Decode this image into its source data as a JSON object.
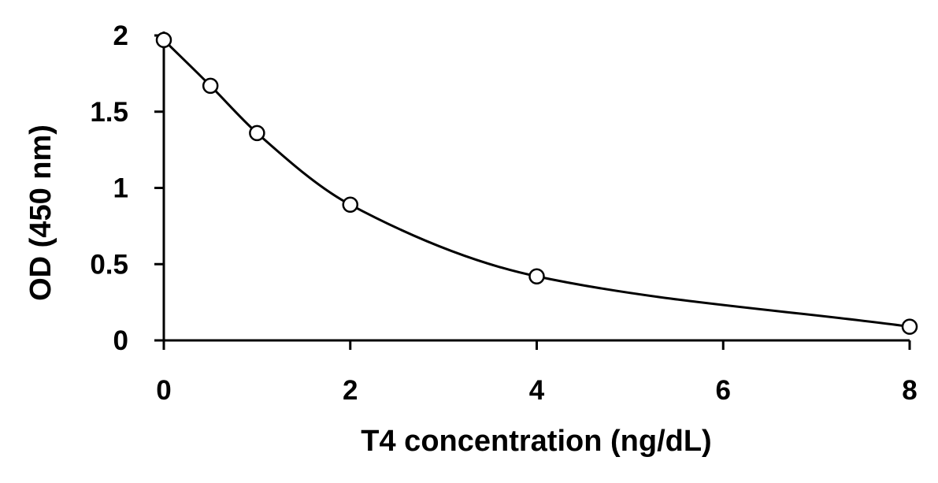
{
  "chart_data": {
    "type": "scatter",
    "title": "",
    "xlabel": "T4 concentration (ng/dL)",
    "ylabel": "OD (450 nm)",
    "xlim": [
      0,
      8
    ],
    "ylim": [
      0,
      2
    ],
    "x_ticks": [
      0,
      2,
      4,
      6,
      8
    ],
    "y_ticks": [
      0,
      0.5,
      1,
      1.5,
      2
    ],
    "x_tick_labels": [
      "0",
      "2",
      "4",
      "6",
      "8"
    ],
    "y_tick_labels": [
      "0",
      "0.5",
      "1",
      "1.5",
      "2"
    ],
    "grid": false,
    "legend": "none",
    "series": [
      {
        "x": [
          0,
          0.5,
          1,
          2,
          4,
          8
        ],
        "y": [
          1.97,
          1.67,
          1.36,
          0.89,
          0.42,
          0.09
        ],
        "marker": "open-circle",
        "line": "smooth",
        "color": "#000000"
      }
    ]
  }
}
